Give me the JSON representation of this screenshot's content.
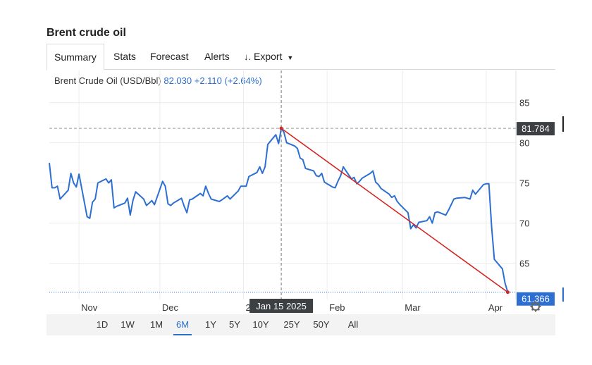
{
  "page": {
    "title": "Brent crude oil"
  },
  "tabs": [
    {
      "label": "Summary",
      "active": true
    },
    {
      "label": "Stats"
    },
    {
      "label": "Forecast"
    },
    {
      "label": "Alerts"
    },
    {
      "label": "Export",
      "icon": "download-icon"
    }
  ],
  "quote": {
    "name": "Brent Crude Oil (USD/Bbl)",
    "price": "82.030",
    "change": "+2.110",
    "change_pct": "(+2.64%)"
  },
  "crosshair": {
    "date_label": "Jan 15 2025",
    "price_label": "81.784",
    "last_label": "61.366"
  },
  "x_axis_labels": [
    "Nov",
    "Dec",
    "20",
    "Feb",
    "Mar",
    "Apr"
  ],
  "y_axis_labels": [
    "85",
    "80",
    "75",
    "70",
    "65"
  ],
  "settings_icon": "gear-icon",
  "ranges": [
    "1D",
    "1W",
    "1M",
    "6M",
    "1Y",
    "5Y",
    "10Y",
    "25Y",
    "50Y",
    "All"
  ],
  "active_range": "6M",
  "colors": {
    "line": "#2d6fd1",
    "trend": "#d42424",
    "label_bg": "#3c4043",
    "last_bg": "#2d6fd1"
  },
  "chart_data": {
    "type": "line",
    "title": "Brent Crude Oil (USD/Bbl)",
    "xlabel": "",
    "ylabel": "",
    "ylim": [
      60.5,
      89
    ],
    "xlim": [
      "2024-10-21",
      "2025-04-12"
    ],
    "yticks": [
      65,
      70,
      75,
      80,
      85
    ],
    "grid": true,
    "series": [
      {
        "name": "Brent Crude Oil (USD/Bbl)",
        "x": [
          "2024-10-21",
          "2024-10-22",
          "2024-10-23",
          "2024-10-24",
          "2024-10-25",
          "2024-10-28",
          "2024-10-29",
          "2024-10-30",
          "2024-10-31",
          "2024-11-01",
          "2024-11-04",
          "2024-11-05",
          "2024-11-06",
          "2024-11-07",
          "2024-11-08",
          "2024-11-11",
          "2024-11-12",
          "2024-11-13",
          "2024-11-14",
          "2024-11-15",
          "2024-11-18",
          "2024-11-19",
          "2024-11-20",
          "2024-11-21",
          "2024-11-22",
          "2024-11-25",
          "2024-11-26",
          "2024-11-27",
          "2024-11-28",
          "2024-11-29",
          "2024-12-02",
          "2024-12-03",
          "2024-12-04",
          "2024-12-05",
          "2024-12-06",
          "2024-12-09",
          "2024-12-10",
          "2024-12-11",
          "2024-12-12",
          "2024-12-13",
          "2024-12-16",
          "2024-12-17",
          "2024-12-18",
          "2024-12-19",
          "2024-12-20",
          "2024-12-23",
          "2024-12-24",
          "2024-12-26",
          "2024-12-27",
          "2024-12-30",
          "2024-12-31",
          "2025-01-02",
          "2025-01-03",
          "2025-01-06",
          "2025-01-07",
          "2025-01-08",
          "2025-01-09",
          "2025-01-10",
          "2025-01-13",
          "2025-01-14",
          "2025-01-15",
          "2025-01-16",
          "2025-01-17",
          "2025-01-20",
          "2025-01-21",
          "2025-01-22",
          "2025-01-23",
          "2025-01-24",
          "2025-01-27",
          "2025-01-28",
          "2025-01-29",
          "2025-01-30",
          "2025-01-31",
          "2025-02-03",
          "2025-02-04",
          "2025-02-05",
          "2025-02-06",
          "2025-02-07",
          "2025-02-10",
          "2025-02-11",
          "2025-02-12",
          "2025-02-13",
          "2025-02-14",
          "2025-02-17",
          "2025-02-18",
          "2025-02-19",
          "2025-02-20",
          "2025-02-21",
          "2025-02-24",
          "2025-02-25",
          "2025-02-26",
          "2025-02-27",
          "2025-02-28",
          "2025-03-03",
          "2025-03-04",
          "2025-03-05",
          "2025-03-06",
          "2025-03-07",
          "2025-03-10",
          "2025-03-11",
          "2025-03-12",
          "2025-03-13",
          "2025-03-14",
          "2025-03-17",
          "2025-03-18",
          "2025-03-19",
          "2025-03-20",
          "2025-03-21",
          "2025-03-24",
          "2025-03-25",
          "2025-03-26",
          "2025-03-27",
          "2025-03-28",
          "2025-03-31",
          "2025-04-01",
          "2025-04-02",
          "2025-04-03",
          "2025-04-04",
          "2025-04-07",
          "2025-04-08",
          "2025-04-09"
        ],
        "values": [
          77.5,
          74.4,
          74.4,
          74.6,
          73.0,
          74.1,
          76.2,
          75.0,
          74.5,
          76.1,
          70.8,
          70.6,
          72.6,
          73.0,
          75.0,
          75.5,
          75.0,
          75.4,
          71.9,
          72.1,
          72.5,
          73.1,
          71.0,
          72.8,
          73.9,
          73.0,
          72.2,
          72.5,
          72.8,
          72.3,
          75.2,
          74.6,
          72.4,
          72.2,
          72.5,
          73.1,
          72.1,
          71.3,
          72.9,
          73.0,
          73.7,
          73.4,
          74.6,
          73.7,
          73.0,
          72.7,
          72.9,
          73.4,
          73.0,
          74.0,
          74.6,
          74.6,
          75.8,
          76.3,
          77.0,
          76.2,
          77.0,
          79.8,
          81.0,
          79.9,
          81.8,
          81.3,
          80.0,
          79.6,
          79.3,
          78.1,
          77.9,
          76.8,
          76.5,
          75.9,
          75.8,
          76.2,
          75.1,
          74.5,
          74.4,
          75.2,
          75.9,
          77.0,
          75.5,
          75.7,
          74.9,
          75.2,
          75.6,
          76.2,
          76.5,
          75.1,
          74.8,
          74.3,
          73.6,
          73.2,
          73.4,
          72.7,
          72.3,
          71.3,
          69.3,
          69.8,
          69.4,
          70.1,
          70.3,
          70.8,
          70.0,
          71.3,
          71.4,
          71.0,
          71.6,
          72.3,
          73.0,
          73.1,
          73.2,
          73.1,
          73.0,
          74.1,
          73.6,
          74.8,
          74.9,
          74.9,
          69.5,
          65.5,
          64.3,
          62.5,
          61.4
        ]
      },
      {
        "name": "trendline",
        "x": [
          "2025-01-15",
          "2025-04-09"
        ],
        "values": [
          81.8,
          61.4
        ]
      }
    ]
  }
}
